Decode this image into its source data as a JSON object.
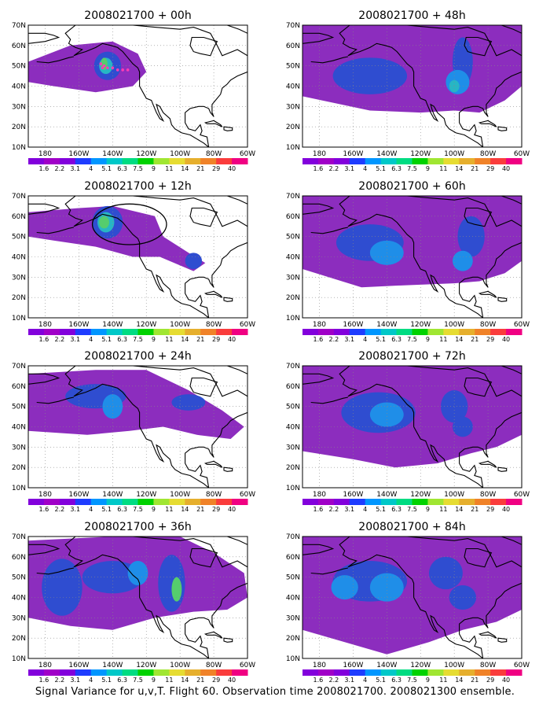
{
  "figure": {
    "caption": "Signal Variance for u,v,T. Flight 60. Observation time 2008021700. 2008021300 ensemble.",
    "colorbar_levels": [
      "1.6",
      "2.2",
      "3.1",
      "4",
      "5.1",
      "6.3",
      "7.5",
      "9",
      "11",
      "14",
      "21",
      "29",
      "40"
    ],
    "colorbar_colors": [
      "#a000c8",
      "#8200dc",
      "#1e3cff",
      "#0096ff",
      "#00c8c8",
      "#00dc82",
      "#00d200",
      "#a0e632",
      "#e6dc32",
      "#e6af2d",
      "#f08228",
      "#fa3c3c",
      "#f00082"
    ],
    "x_ticks": [
      "180",
      "160W",
      "140W",
      "120W",
      "100W",
      "80W",
      "60W"
    ],
    "y_ticks": [
      "70N",
      "60N",
      "50N",
      "40N",
      "30N",
      "20N",
      "10N"
    ],
    "panels": [
      {
        "title": "2008021700 + 00h"
      },
      {
        "title": "2008021700 + 48h"
      },
      {
        "title": "2008021700 + 12h"
      },
      {
        "title": "2008021700 + 60h"
      },
      {
        "title": "2008021700 + 24h"
      },
      {
        "title": "2008021700 + 72h"
      },
      {
        "title": "2008021700 + 36h"
      },
      {
        "title": "2008021700 + 84h"
      }
    ]
  }
}
